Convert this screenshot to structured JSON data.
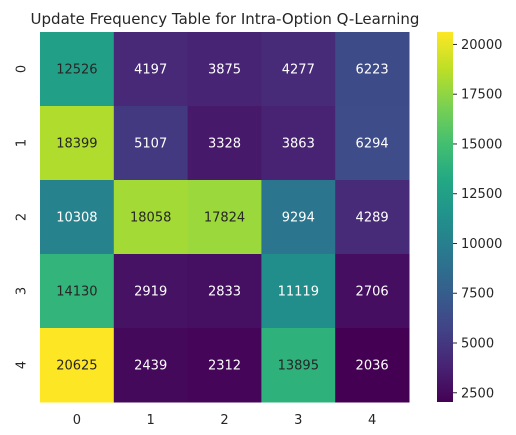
{
  "chart_data": {
    "type": "heatmap",
    "title": "Update Frequency Table for Intra-Option Q-Learning",
    "xlabel": "",
    "ylabel": "",
    "x_categories": [
      "0",
      "1",
      "2",
      "3",
      "4"
    ],
    "y_categories": [
      "0",
      "1",
      "2",
      "3",
      "4"
    ],
    "values": [
      [
        12526,
        4197,
        3875,
        4277,
        6223
      ],
      [
        18399,
        5107,
        3328,
        3863,
        6294
      ],
      [
        10308,
        18058,
        17824,
        9294,
        4289
      ],
      [
        14130,
        2919,
        2833,
        11119,
        2706
      ],
      [
        20625,
        2439,
        2312,
        13895,
        2036
      ]
    ],
    "annotations": true,
    "colormap": "viridis",
    "colorbar": {
      "range": [
        2036,
        20625
      ],
      "ticks": [
        2500,
        5000,
        7500,
        10000,
        12500,
        15000,
        17500,
        20000
      ]
    },
    "annotation_text_color_light": "#ffffff",
    "annotation_text_color_dark": "#262626",
    "grid": false
  }
}
